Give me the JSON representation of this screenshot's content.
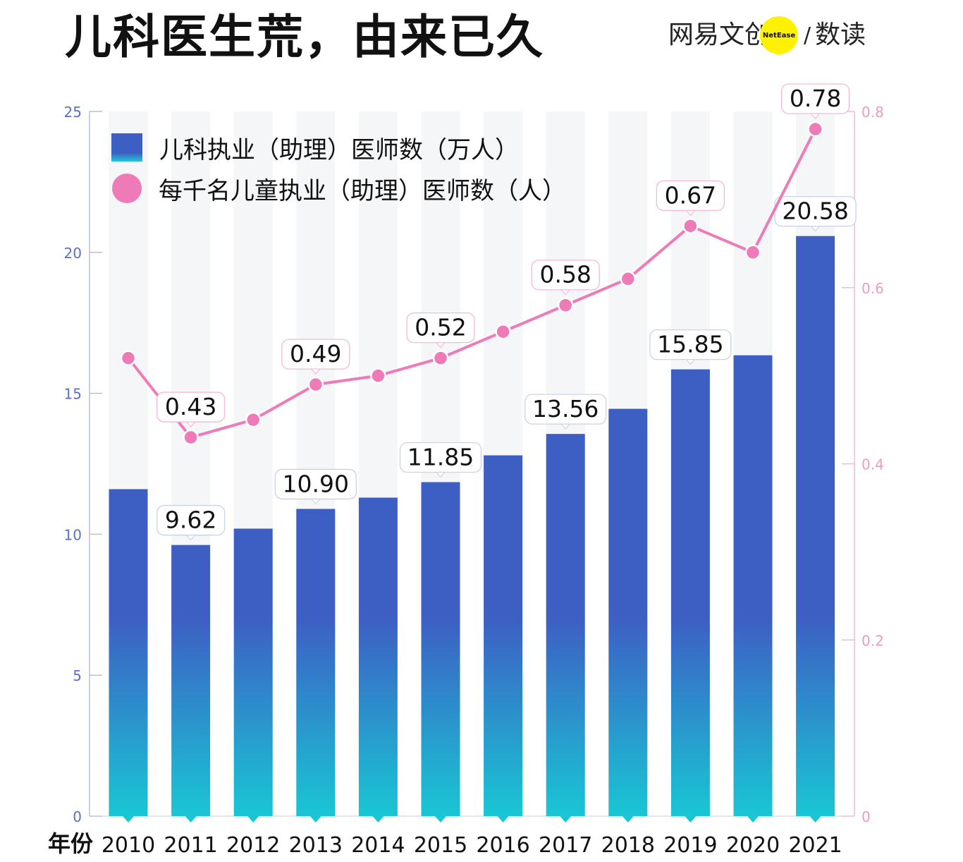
{
  "title": "儿科医生荒，由来已久",
  "brand": {
    "name": "网易文创",
    "badge": "NetEase",
    "separator": "/",
    "sub": "数读"
  },
  "colors": {
    "bar_top": "#3d5fc4",
    "bar_bottom": "#19c6d4",
    "line": "#ef7ab8",
    "column_bg": "#f5f6f7",
    "left_axis": "#5b6fc8",
    "right_axis": "#f09ac5"
  },
  "x_axis_prefix": "年份",
  "chart_data": {
    "type": "bar",
    "categories": [
      "2010",
      "2011",
      "2012",
      "2013",
      "2014",
      "2015",
      "2016",
      "2017",
      "2018",
      "2019",
      "2020",
      "2021"
    ],
    "series": [
      {
        "name": "儿科执业（助理）医师数（万人）",
        "type": "bar",
        "axis": "left",
        "values": [
          11.6,
          9.62,
          10.2,
          10.9,
          11.3,
          11.85,
          12.8,
          13.56,
          14.45,
          15.85,
          16.35,
          20.58
        ],
        "labels": [
          "",
          "9.62",
          "",
          "10.90",
          "",
          "11.85",
          "",
          "13.56",
          "",
          "15.85",
          "",
          "20.58"
        ]
      },
      {
        "name": "每千名儿童执业（助理）医师数（人）",
        "type": "line",
        "axis": "right",
        "values": [
          0.52,
          0.43,
          0.45,
          0.49,
          0.5,
          0.52,
          0.55,
          0.58,
          0.61,
          0.67,
          0.64,
          0.78
        ],
        "labels": [
          "",
          "0.43",
          "",
          "0.49",
          "",
          "0.52",
          "",
          "0.58",
          "",
          "0.67",
          "",
          "0.78"
        ]
      }
    ],
    "y_left": {
      "min": 0,
      "max": 25,
      "ticks": [
        "0",
        "5",
        "10",
        "15",
        "20",
        "25"
      ]
    },
    "y_right": {
      "min": 0,
      "max": 0.8,
      "ticks": [
        "0",
        "0.2",
        "0.4",
        "0.6",
        "0.8"
      ]
    },
    "legend_position": "top-left"
  }
}
